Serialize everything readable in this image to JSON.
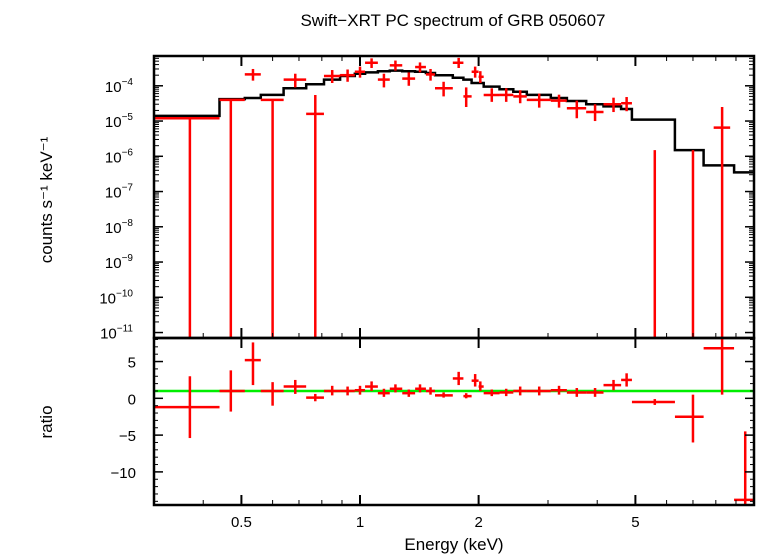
{
  "chart_data": [
    {
      "type": "scatter",
      "panel": "spectrum",
      "title": "Swift−XRT PC spectrum of GRB 050607",
      "ylabel": "counts s⁻¹ keV⁻¹",
      "xscale": "log",
      "yscale": "log",
      "xlim": [
        0.3,
        10
      ],
      "ylim": [
        7e-12,
        0.0007
      ],
      "yticks": [
        {
          "exp": -4,
          "label_base": "10",
          "label_exp": "−4"
        },
        {
          "exp": -5,
          "label_base": "10",
          "label_exp": "−5"
        },
        {
          "exp": -6,
          "label_base": "10",
          "label_exp": "−6"
        },
        {
          "exp": -7,
          "label_base": "10",
          "label_exp": "−7"
        },
        {
          "exp": -8,
          "label_base": "10",
          "label_exp": "−8"
        },
        {
          "exp": -9,
          "label_base": "10",
          "label_exp": "−9"
        },
        {
          "exp": -10,
          "label_base": "10",
          "label_exp": "−10"
        },
        {
          "exp": -11,
          "label_base": "10",
          "label_exp": "−11"
        }
      ],
      "data": [
        {
          "x": 0.37,
          "xlo": 0.3,
          "xhi": 0.44,
          "y": 1.2e-05,
          "ylo": 7e-12,
          "yhi": 1.2e-05
        },
        {
          "x": 0.47,
          "xlo": 0.44,
          "xhi": 0.51,
          "y": 4e-05,
          "ylo": 7e-12,
          "yhi": 4e-05
        },
        {
          "x": 0.535,
          "xlo": 0.51,
          "xhi": 0.56,
          "y": 0.00021,
          "ylo": 0.00014,
          "yhi": 0.0003
        },
        {
          "x": 0.6,
          "xlo": 0.56,
          "xhi": 0.64,
          "y": 4e-05,
          "ylo": 7e-12,
          "yhi": 4e-05
        },
        {
          "x": 0.685,
          "xlo": 0.64,
          "xhi": 0.73,
          "y": 0.00015,
          "ylo": 9e-05,
          "yhi": 0.00022
        },
        {
          "x": 0.77,
          "xlo": 0.73,
          "xhi": 0.81,
          "y": 1.6e-05,
          "ylo": 7e-12,
          "yhi": 5.5e-05
        },
        {
          "x": 0.85,
          "xlo": 0.81,
          "xhi": 0.89,
          "y": 0.00019,
          "ylo": 0.00012,
          "yhi": 0.00028
        },
        {
          "x": 0.93,
          "xlo": 0.89,
          "xhi": 0.97,
          "y": 0.0002,
          "ylo": 0.00013,
          "yhi": 0.00029
        },
        {
          "x": 1.0,
          "xlo": 0.97,
          "xhi": 1.03,
          "y": 0.00025,
          "ylo": 0.00017,
          "yhi": 0.00035
        },
        {
          "x": 1.07,
          "xlo": 1.03,
          "xhi": 1.11,
          "y": 0.00045,
          "ylo": 0.00032,
          "yhi": 0.0006
        },
        {
          "x": 1.15,
          "xlo": 1.11,
          "xhi": 1.19,
          "y": 0.00015,
          "ylo": 9e-05,
          "yhi": 0.00022
        },
        {
          "x": 1.23,
          "xlo": 1.19,
          "xhi": 1.28,
          "y": 0.00038,
          "ylo": 0.00027,
          "yhi": 0.00052
        },
        {
          "x": 1.33,
          "xlo": 1.28,
          "xhi": 1.38,
          "y": 0.00016,
          "ylo": 0.0001,
          "yhi": 0.00024
        },
        {
          "x": 1.42,
          "xlo": 1.38,
          "xhi": 1.47,
          "y": 0.00034,
          "ylo": 0.00024,
          "yhi": 0.00046
        },
        {
          "x": 1.51,
          "xlo": 1.47,
          "xhi": 1.55,
          "y": 0.00021,
          "ylo": 0.00014,
          "yhi": 0.0003
        },
        {
          "x": 1.63,
          "xlo": 1.55,
          "xhi": 1.72,
          "y": 8.5e-05,
          "ylo": 5e-05,
          "yhi": 0.00013
        },
        {
          "x": 1.78,
          "xlo": 1.72,
          "xhi": 1.83,
          "y": 0.00045,
          "ylo": 0.00032,
          "yhi": 0.00062
        },
        {
          "x": 1.86,
          "xlo": 1.83,
          "xhi": 1.92,
          "y": 5e-05,
          "ylo": 2.5e-05,
          "yhi": 9e-05
        },
        {
          "x": 1.96,
          "xlo": 1.92,
          "xhi": 2.0,
          "y": 0.00025,
          "ylo": 0.00017,
          "yhi": 0.00035
        },
        {
          "x": 2.02,
          "xlo": 2.0,
          "xhi": 2.06,
          "y": 0.00018,
          "ylo": 0.00012,
          "yhi": 0.00026
        },
        {
          "x": 2.16,
          "xlo": 2.06,
          "xhi": 2.26,
          "y": 5.5e-05,
          "ylo": 3.5e-05,
          "yhi": 8.5e-05
        },
        {
          "x": 2.35,
          "xlo": 2.26,
          "xhi": 2.45,
          "y": 5.5e-05,
          "ylo": 3.5e-05,
          "yhi": 8.5e-05
        },
        {
          "x": 2.55,
          "xlo": 2.45,
          "xhi": 2.65,
          "y": 5e-05,
          "ylo": 3.2e-05,
          "yhi": 7.5e-05
        },
        {
          "x": 2.85,
          "xlo": 2.65,
          "xhi": 3.05,
          "y": 4e-05,
          "ylo": 2.4e-05,
          "yhi": 6e-05
        },
        {
          "x": 3.2,
          "xlo": 3.05,
          "xhi": 3.35,
          "y": 3.8e-05,
          "ylo": 2.4e-05,
          "yhi": 5.6e-05
        },
        {
          "x": 3.55,
          "xlo": 3.35,
          "xhi": 3.75,
          "y": 2.3e-05,
          "ylo": 1.2e-05,
          "yhi": 3.8e-05
        },
        {
          "x": 3.95,
          "xlo": 3.75,
          "xhi": 4.15,
          "y": 1.8e-05,
          "ylo": 1e-05,
          "yhi": 3e-05
        },
        {
          "x": 4.4,
          "xlo": 4.15,
          "xhi": 4.6,
          "y": 3e-05,
          "ylo": 1.8e-05,
          "yhi": 4.6e-05
        },
        {
          "x": 4.75,
          "xlo": 4.6,
          "xhi": 4.9,
          "y": 3.2e-05,
          "ylo": 1.9e-05,
          "yhi": 4.8e-05
        },
        {
          "x": 5.6,
          "xlo": 5.6,
          "xhi": 5.6,
          "y": 1.5e-06,
          "ylo": 7e-12,
          "yhi": 1.5e-06
        },
        {
          "x": 7.0,
          "xlo": 7.0,
          "xhi": 7.0,
          "y": 1.5e-06,
          "ylo": 7e-12,
          "yhi": 1.5e-06
        },
        {
          "x": 8.3,
          "xlo": 7.9,
          "xhi": 8.7,
          "y": 6.5e-06,
          "ylo": 7e-12,
          "yhi": 2.5e-05
        }
      ],
      "model": {
        "edges": [
          0.3,
          0.44,
          0.51,
          0.56,
          0.64,
          0.73,
          0.81,
          0.89,
          0.97,
          1.03,
          1.11,
          1.19,
          1.28,
          1.38,
          1.47,
          1.55,
          1.72,
          1.83,
          1.92,
          2.06,
          2.26,
          2.45,
          2.65,
          3.05,
          3.35,
          3.75,
          4.15,
          4.6,
          4.9,
          6.3,
          7.45,
          8.9,
          10
        ],
        "values": [
          1.4e-05,
          4.2e-05,
          4.5e-05,
          5.5e-05,
          8.5e-05,
          0.00011,
          0.00015,
          0.00019,
          0.00022,
          0.00024,
          0.00026,
          0.00027,
          0.00026,
          0.00025,
          0.00023,
          0.0002,
          0.00017,
          0.00015,
          0.00012,
          9.5e-05,
          8e-05,
          6.8e-05,
          5.5e-05,
          4.5e-05,
          3.7e-05,
          3e-05,
          2.6e-05,
          2.2e-05,
          1.1e-05,
          1.5e-06,
          5.5e-07,
          3.5e-07
        ]
      }
    },
    {
      "type": "scatter",
      "panel": "ratio",
      "xlabel": "Energy (keV)",
      "ylabel": "ratio",
      "xscale": "log",
      "xlim": [
        0.3,
        10
      ],
      "ylim": [
        -14.5,
        8.2
      ],
      "xticks": [
        {
          "value": 0.5,
          "label": "0.5"
        },
        {
          "value": 1,
          "label": "1"
        },
        {
          "value": 2,
          "label": "2"
        },
        {
          "value": 5,
          "label": "5"
        }
      ],
      "yticks": [
        {
          "value": 5,
          "label": "5"
        },
        {
          "value": 0,
          "label": "0"
        },
        {
          "value": -5,
          "label": "−5"
        },
        {
          "value": -10,
          "label": "−10"
        }
      ],
      "reference_line": {
        "y": 1,
        "color": "#00ee00"
      },
      "data": [
        {
          "x": 0.37,
          "xlo": 0.3,
          "xhi": 0.44,
          "y": -1.2,
          "ylo": -5.4,
          "yhi": 3.0
        },
        {
          "x": 0.47,
          "xlo": 0.44,
          "xhi": 0.51,
          "y": 1.0,
          "ylo": -1.8,
          "yhi": 3.8
        },
        {
          "x": 0.535,
          "xlo": 0.51,
          "xhi": 0.56,
          "y": 5.2,
          "ylo": 1.8,
          "yhi": 7.6
        },
        {
          "x": 0.6,
          "xlo": 0.56,
          "xhi": 0.64,
          "y": 1.0,
          "ylo": -1.0,
          "yhi": 2.2
        },
        {
          "x": 0.685,
          "xlo": 0.64,
          "xhi": 0.73,
          "y": 1.6,
          "ylo": 0.6,
          "yhi": 2.5
        },
        {
          "x": 0.77,
          "xlo": 0.73,
          "xhi": 0.81,
          "y": 0.1,
          "ylo": -0.4,
          "yhi": 0.6
        },
        {
          "x": 0.85,
          "xlo": 0.81,
          "xhi": 0.89,
          "y": 1.0,
          "ylo": 0.4,
          "yhi": 1.7
        },
        {
          "x": 0.93,
          "xlo": 0.89,
          "xhi": 0.97,
          "y": 1.0,
          "ylo": 0.4,
          "yhi": 1.6
        },
        {
          "x": 1.0,
          "xlo": 0.97,
          "xhi": 1.03,
          "y": 1.1,
          "ylo": 0.5,
          "yhi": 1.7
        },
        {
          "x": 1.07,
          "xlo": 1.03,
          "xhi": 1.11,
          "y": 1.6,
          "ylo": 1.0,
          "yhi": 2.3
        },
        {
          "x": 1.15,
          "xlo": 1.11,
          "xhi": 1.19,
          "y": 0.7,
          "ylo": 0.2,
          "yhi": 1.3
        },
        {
          "x": 1.23,
          "xlo": 1.19,
          "xhi": 1.28,
          "y": 1.3,
          "ylo": 0.8,
          "yhi": 1.9
        },
        {
          "x": 1.33,
          "xlo": 1.28,
          "xhi": 1.38,
          "y": 0.7,
          "ylo": 0.2,
          "yhi": 1.2
        },
        {
          "x": 1.42,
          "xlo": 1.38,
          "xhi": 1.47,
          "y": 1.3,
          "ylo": 0.8,
          "yhi": 1.9
        },
        {
          "x": 1.51,
          "xlo": 1.47,
          "xhi": 1.55,
          "y": 1.0,
          "ylo": 0.5,
          "yhi": 1.5
        },
        {
          "x": 1.63,
          "xlo": 1.55,
          "xhi": 1.72,
          "y": 0.4,
          "ylo": 0.1,
          "yhi": 0.8
        },
        {
          "x": 1.78,
          "xlo": 1.72,
          "xhi": 1.83,
          "y": 2.7,
          "ylo": 1.8,
          "yhi": 3.6
        },
        {
          "x": 1.86,
          "xlo": 1.83,
          "xhi": 1.92,
          "y": 0.3,
          "ylo": 0.0,
          "yhi": 0.7
        },
        {
          "x": 1.96,
          "xlo": 1.92,
          "xhi": 2.0,
          "y": 2.4,
          "ylo": 1.6,
          "yhi": 3.3
        },
        {
          "x": 2.02,
          "xlo": 2.0,
          "xhi": 2.06,
          "y": 1.6,
          "ylo": 1.0,
          "yhi": 2.3
        },
        {
          "x": 2.16,
          "xlo": 2.06,
          "xhi": 2.26,
          "y": 0.7,
          "ylo": 0.3,
          "yhi": 1.2
        },
        {
          "x": 2.35,
          "xlo": 2.26,
          "xhi": 2.45,
          "y": 0.8,
          "ylo": 0.3,
          "yhi": 1.3
        },
        {
          "x": 2.55,
          "xlo": 2.45,
          "xhi": 2.65,
          "y": 1.0,
          "ylo": 0.4,
          "yhi": 1.6
        },
        {
          "x": 2.85,
          "xlo": 2.65,
          "xhi": 3.05,
          "y": 1.0,
          "ylo": 0.4,
          "yhi": 1.6
        },
        {
          "x": 3.2,
          "xlo": 3.05,
          "xhi": 3.35,
          "y": 1.1,
          "ylo": 0.5,
          "yhi": 1.7
        },
        {
          "x": 3.55,
          "xlo": 3.35,
          "xhi": 3.75,
          "y": 0.8,
          "ylo": 0.2,
          "yhi": 1.4
        },
        {
          "x": 3.95,
          "xlo": 3.75,
          "xhi": 4.15,
          "y": 0.8,
          "ylo": 0.2,
          "yhi": 1.4
        },
        {
          "x": 4.4,
          "xlo": 4.15,
          "xhi": 4.6,
          "y": 1.8,
          "ylo": 1.1,
          "yhi": 2.5
        },
        {
          "x": 4.75,
          "xlo": 4.6,
          "xhi": 4.9,
          "y": 2.5,
          "ylo": 1.6,
          "yhi": 3.4
        },
        {
          "x": 5.6,
          "xlo": 4.9,
          "xhi": 6.3,
          "y": -0.5,
          "ylo": -0.9,
          "yhi": -0.1
        },
        {
          "x": 7.0,
          "xlo": 6.3,
          "xhi": 7.45,
          "y": -2.5,
          "ylo": -6.0,
          "yhi": 0.5
        },
        {
          "x": 8.3,
          "xlo": 7.45,
          "xhi": 8.9,
          "y": 6.8,
          "ylo": 0.5,
          "yhi": 8.2
        },
        {
          "x": 9.5,
          "xlo": 8.9,
          "xhi": 10,
          "y": -13.8,
          "ylo": -14.5,
          "yhi": -4.5
        }
      ]
    }
  ],
  "colors": {
    "data": "#ff0000",
    "model": "#000000",
    "reference": "#00ee00"
  }
}
